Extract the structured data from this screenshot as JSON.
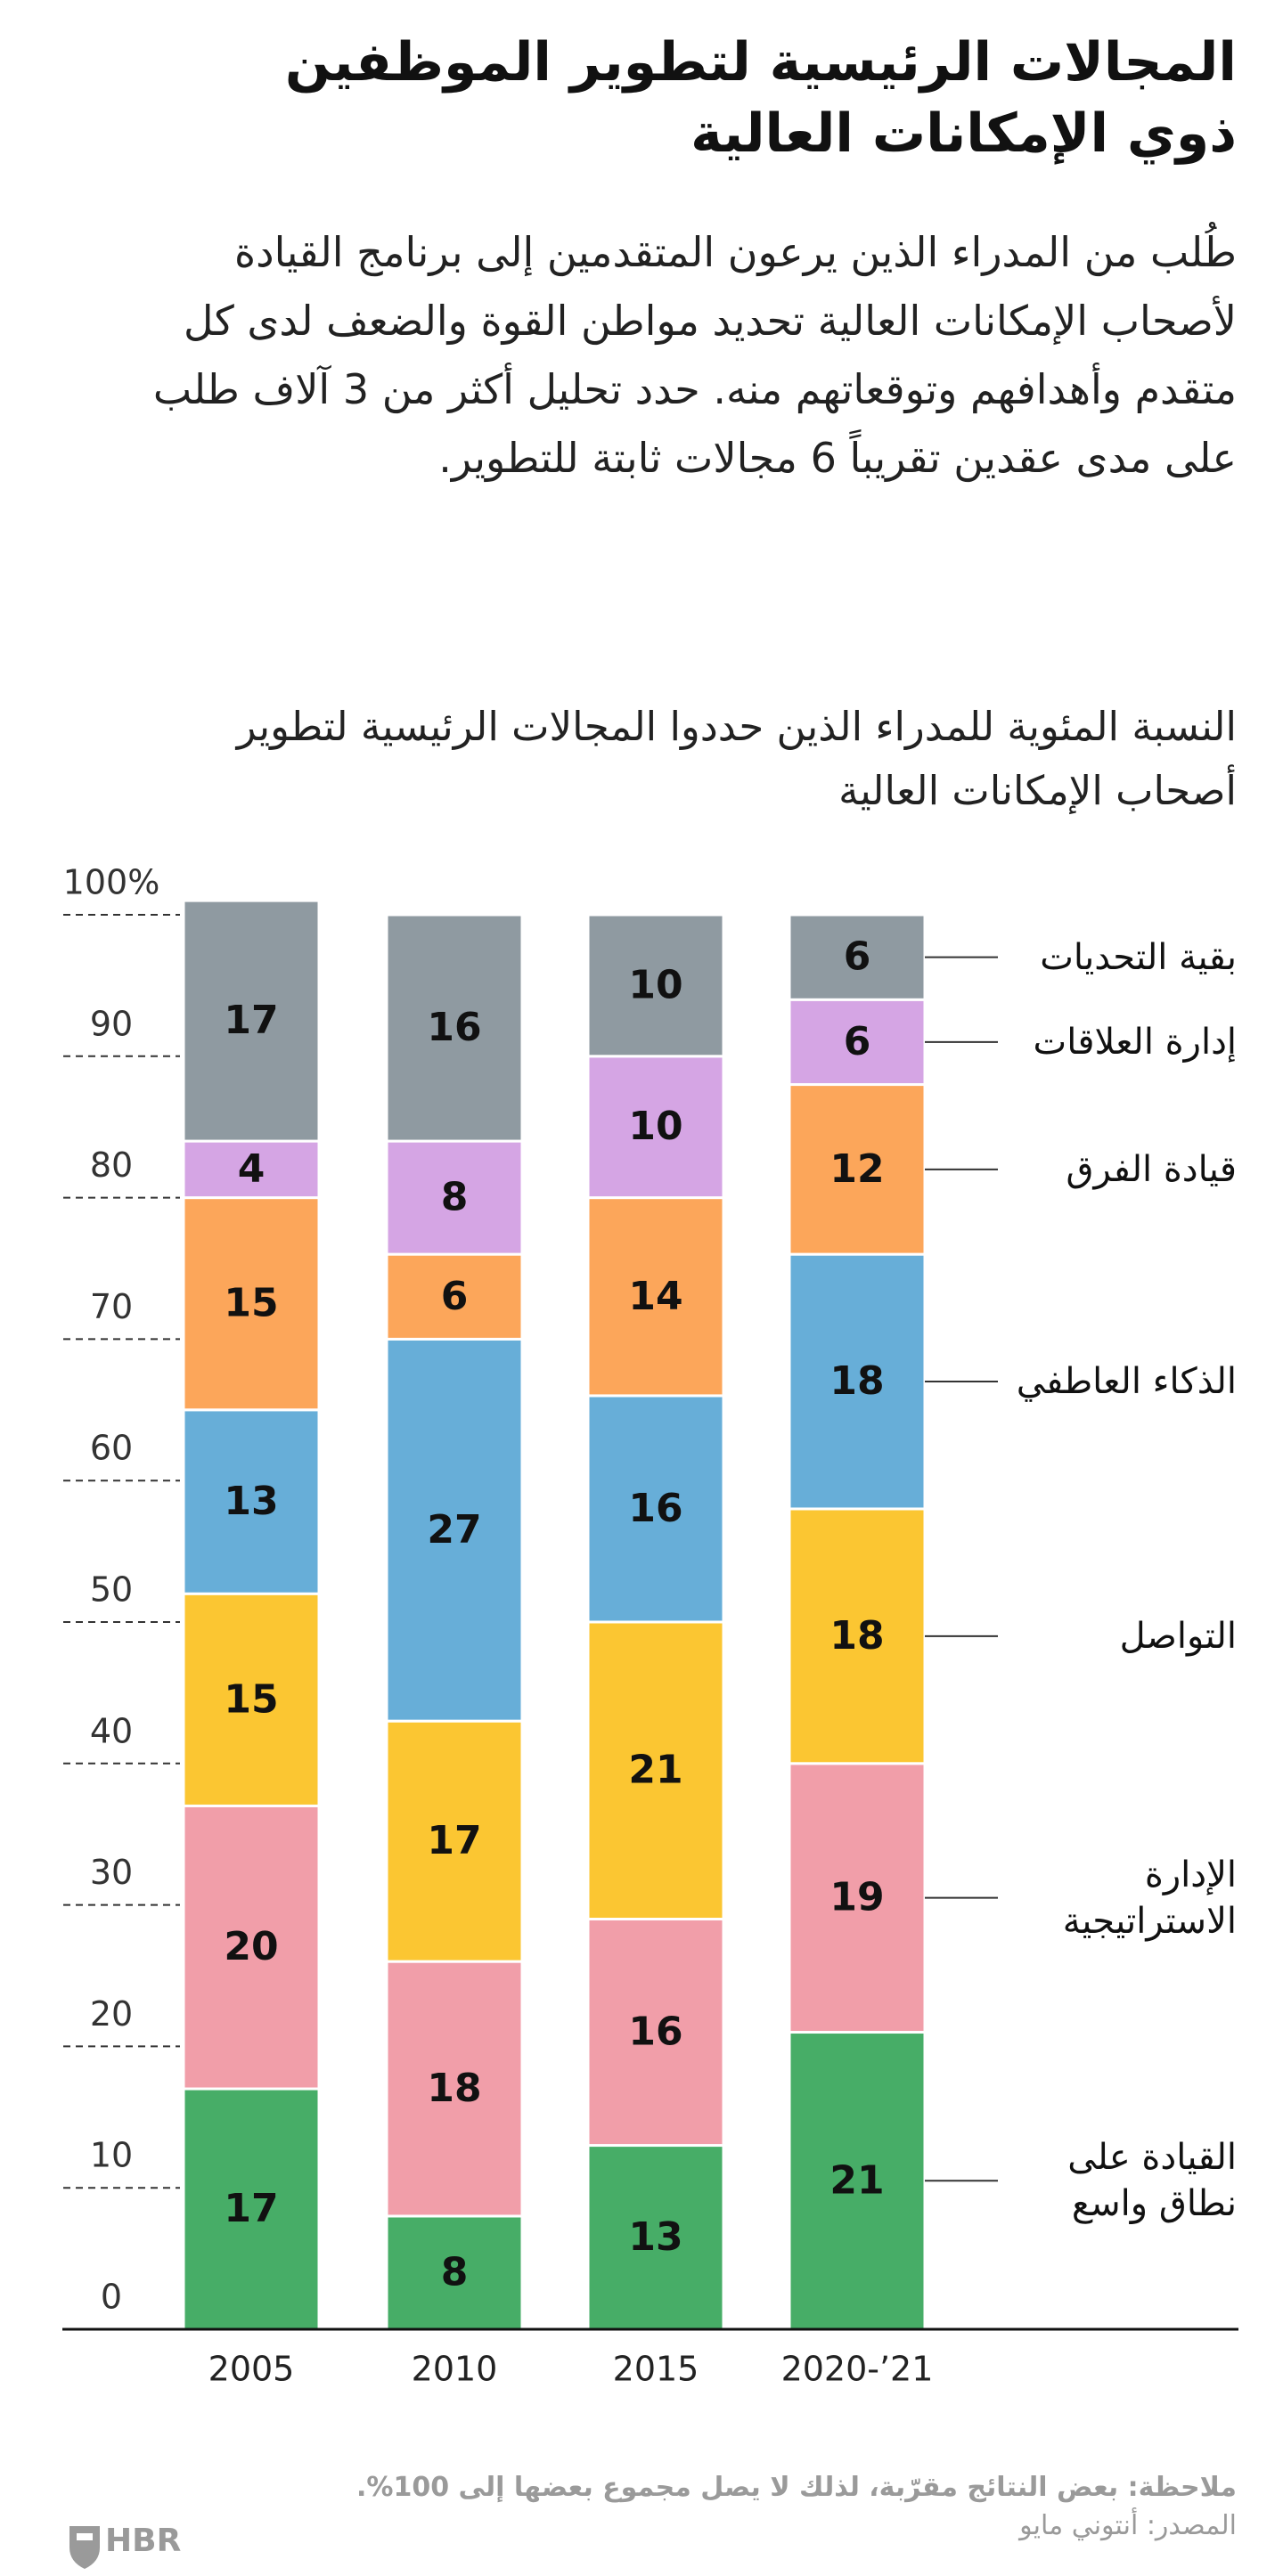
{
  "chart_data": {
    "type": "stacked-bar",
    "title": "المجالات الرئيسية لتطوير الموظفين ذوي الإمكانات العالية",
    "subtitle": "طُلب من المدراء الذين يرعون المتقدمين إلى برنامج القيادة لأصحاب الإمكانات العالية تحديد مواطن القوة والضعف لدى كل متقدم وأهدافهم وتوقعاتهم منه. حدد تحليل أكثر من 3 آلاف طلب على مدى عقدين تقريباً 6 مجالات ثابتة للتطوير.",
    "chart_title": "النسبة المئوية للمدراء الذين حددوا المجالات الرئيسية لتطوير أصحاب الإمكانات العالية",
    "categories": [
      "2005",
      "2010",
      "2015",
      "2020-’21"
    ],
    "series": [
      {
        "name": "القيادة على نطاق واسع",
        "color": "#47ad67",
        "values": [
          17,
          8,
          13,
          21
        ]
      },
      {
        "name": "الإدارة الاستراتيجية",
        "color": "#f19ea9",
        "values": [
          20,
          18,
          16,
          19
        ]
      },
      {
        "name": "التواصل",
        "color": "#fbc632",
        "values": [
          15,
          17,
          21,
          18
        ]
      },
      {
        "name": "الذكاء العاطفي",
        "color": "#67aed8",
        "values": [
          13,
          27,
          16,
          18
        ]
      },
      {
        "name": "قيادة الفرق",
        "color": "#fca65a",
        "values": [
          15,
          6,
          14,
          12
        ]
      },
      {
        "name": "إدارة العلاقات",
        "color": "#d5a5e4",
        "values": [
          4,
          8,
          10,
          6
        ]
      },
      {
        "name": "بقية التحديات",
        "color": "#8f9aa1",
        "values": [
          17,
          16,
          10,
          6
        ]
      }
    ],
    "ylim": [
      0,
      100
    ],
    "yticks": [
      0,
      10,
      20,
      30,
      40,
      50,
      60,
      70,
      80,
      90,
      {
        "value": 100,
        "label": "100%"
      }
    ],
    "grid": true,
    "legend": "right",
    "note": "ملاحظة: بعض النتائج مقرّبة، لذلك لا يصل مجموع بعضها إلى 100%.",
    "source": "المصدر: أنتوني مايو",
    "logo": "HBR"
  }
}
